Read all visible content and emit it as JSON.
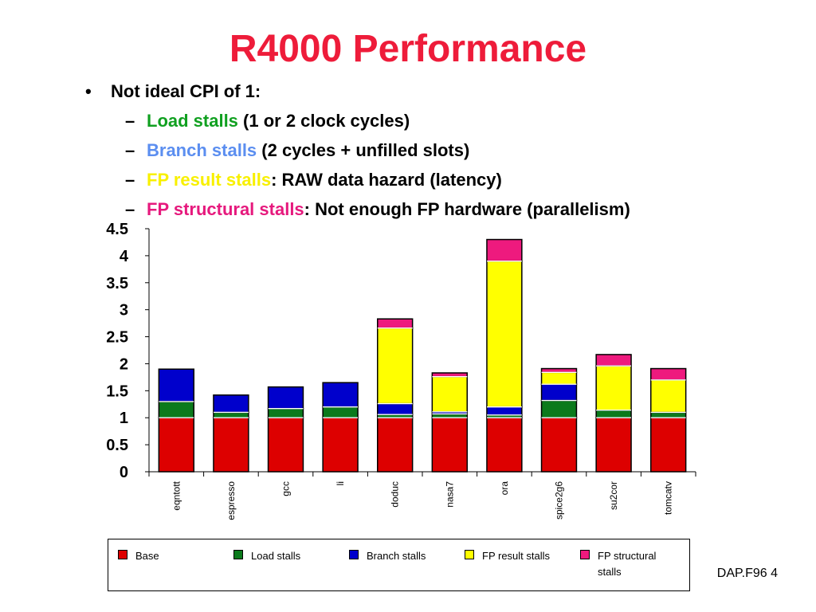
{
  "slide": {
    "title": "R4000 Performance",
    "bullet": {
      "symbol": "•",
      "text": "Not ideal CPI of 1:"
    },
    "sub_items": [
      {
        "dash": "–",
        "highlight": "Load stalls",
        "highlight_color": "#10a020",
        "rest": " (1 or 2 clock cycles)"
      },
      {
        "dash": "–",
        "highlight": "Branch stalls",
        "highlight_color": "#5b8ef0",
        "rest": " (2 cycles + unfilled slots)"
      },
      {
        "dash": "–",
        "highlight": "FP result stalls",
        "highlight_color": "#f8f000",
        "rest": ": RAW data hazard (latency)"
      },
      {
        "dash": "–",
        "highlight": "FP structural stalls",
        "highlight_color": "#e6197d",
        "rest": ": Not enough FP hardware (parallelism)"
      }
    ],
    "footer": "DAP.F96  4"
  },
  "chart_data": {
    "type": "bar",
    "stacked": true,
    "categories": [
      "eqntott",
      "espresso",
      "gcc",
      "li",
      "doduc",
      "nasa7",
      "ora",
      "spice2g6",
      "su2cor",
      "tomcatv"
    ],
    "series": [
      {
        "name": "Base",
        "color": "#dd0000",
        "values": [
          1.0,
          1.0,
          1.0,
          1.0,
          1.0,
          1.0,
          1.0,
          1.0,
          1.0,
          1.0
        ]
      },
      {
        "name": "Load stalls",
        "color": "#0b7a1c",
        "values": [
          0.3,
          0.1,
          0.17,
          0.2,
          0.06,
          0.07,
          0.05,
          0.32,
          0.14,
          0.1
        ]
      },
      {
        "name": "Branch stalls",
        "color": "#0000cc",
        "values": [
          0.6,
          0.32,
          0.4,
          0.45,
          0.2,
          0.04,
          0.15,
          0.3,
          0.0,
          0.0
        ]
      },
      {
        "name": "FP result stalls",
        "color": "#ffff00",
        "values": [
          0.0,
          0.0,
          0.0,
          0.0,
          1.4,
          0.65,
          2.7,
          0.22,
          0.82,
          0.6
        ]
      },
      {
        "name": "FP structural\nstalls",
        "color": "#ee1a7e",
        "values": [
          0.0,
          0.0,
          0.0,
          0.0,
          0.17,
          0.07,
          0.4,
          0.07,
          0.21,
          0.21
        ]
      }
    ],
    "ylim": [
      0,
      4.5
    ],
    "yticks": [
      "0",
      "0.5",
      "1",
      "1.5",
      "2",
      "2.5",
      "3",
      "3.5",
      "4",
      "4.5"
    ],
    "legend_position": "bottom",
    "grid": false
  }
}
